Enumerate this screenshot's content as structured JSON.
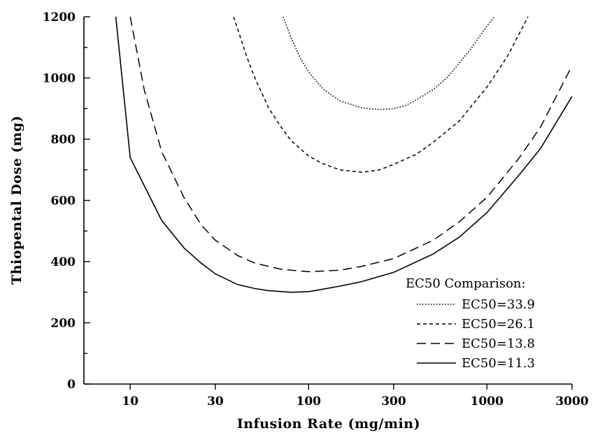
{
  "chart_data": {
    "type": "line",
    "xlabel": "Infusion Rate (mg/min)",
    "ylabel": "Thiopental Dose (mg)",
    "x_scale": "log",
    "xlim": [
      5.5,
      3000
    ],
    "ylim": [
      0,
      1200
    ],
    "x_ticks": [
      10,
      30,
      100,
      300,
      1000,
      3000
    ],
    "x_tick_labels": [
      "10",
      "30",
      "100",
      "300",
      "1000",
      "3000"
    ],
    "y_ticks": [
      0,
      200,
      400,
      600,
      800,
      1000,
      1200
    ],
    "y_tick_labels": [
      "0",
      "200",
      "400",
      "600",
      "800",
      "1000",
      "1200"
    ],
    "grid": false,
    "legend": {
      "title": "EC50 Comparison:",
      "position": "bottom-right"
    },
    "series": [
      {
        "name": "EC50=33.9",
        "style": "dotted",
        "x": [
          72,
          80,
          90,
          100,
          120,
          150,
          200,
          250,
          300,
          350,
          400,
          500,
          600,
          800,
          1000,
          1100
        ],
        "y": [
          1200,
          1130,
          1065,
          1020,
          965,
          925,
          902,
          897,
          900,
          910,
          928,
          962,
          1002,
          1090,
          1170,
          1200
        ]
      },
      {
        "name": "EC50=26.1",
        "style": "short-dash",
        "x": [
          38,
          40,
          45,
          50,
          60,
          70,
          80,
          100,
          120,
          150,
          200,
          250,
          300,
          400,
          500,
          700,
          1000,
          1300,
          1700
        ],
        "y": [
          1200,
          1160,
          1070,
          1000,
          900,
          840,
          795,
          745,
          720,
          700,
          692,
          700,
          718,
          750,
          790,
          860,
          970,
          1070,
          1200
        ]
      },
      {
        "name": "EC50=13.8",
        "style": "long-dash",
        "x": [
          10,
          12,
          15,
          20,
          25,
          30,
          40,
          50,
          70,
          100,
          150,
          200,
          300,
          500,
          700,
          1000,
          1500,
          2000,
          3000
        ],
        "y": [
          1200,
          960,
          760,
          610,
          520,
          470,
          420,
          395,
          375,
          367,
          372,
          385,
          410,
          470,
          530,
          610,
          735,
          840,
          1040
        ]
      },
      {
        "name": "EC50=11.3",
        "style": "solid",
        "x": [
          8.3,
          10,
          15,
          20,
          25,
          30,
          40,
          50,
          60,
          80,
          100,
          120,
          150,
          200,
          300,
          500,
          700,
          1000,
          1500,
          2000,
          3000
        ],
        "y": [
          1200,
          740,
          535,
          445,
          395,
          360,
          325,
          312,
          305,
          300,
          302,
          310,
          320,
          335,
          365,
          425,
          480,
          560,
          680,
          770,
          940
        ]
      }
    ]
  }
}
